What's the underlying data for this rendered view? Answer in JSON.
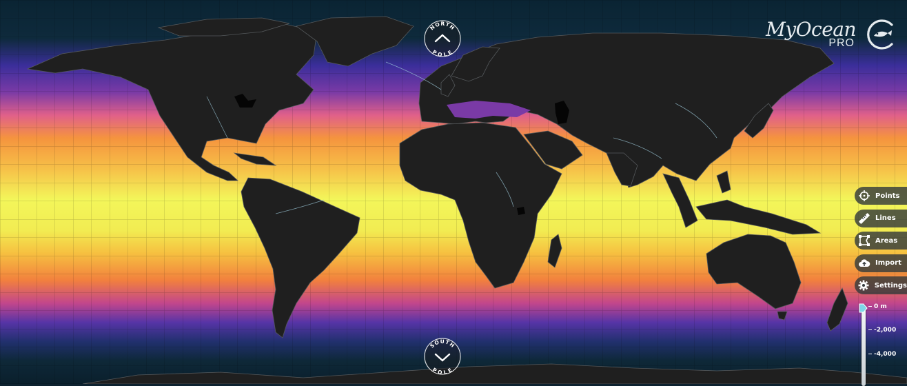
{
  "map": {
    "view": "world sea surface temperature",
    "colors": {
      "land": "#1f1f1f",
      "ocean_cold": "#0a2433",
      "ocean_cool": "#4a2ea5",
      "ocean_mid": "#d4508a",
      "ocean_warm": "#f5a23a",
      "ocean_hot": "#f3f75a",
      "borders": "#6b7075",
      "rivers": "#9cc8d8"
    }
  },
  "north_pole": {
    "line1": "NORTH",
    "line2": "POLE",
    "icon": "chevron-up-icon"
  },
  "south_pole": {
    "line1": "SOUTH",
    "line2": "POLE",
    "icon": "chevron-down-icon"
  },
  "logo": {
    "wordmark": "MyOcean",
    "tier": "PRO",
    "icon": "fish-in-circle-icon"
  },
  "tools": [
    {
      "label": "Points",
      "icon": "crosshair-icon"
    },
    {
      "label": "Lines",
      "icon": "ruler-icon"
    },
    {
      "label": "Areas",
      "icon": "polygon-area-icon"
    },
    {
      "label": "Import",
      "icon": "cloud-upload-icon"
    },
    {
      "label": "Settings",
      "icon": "gear-icon"
    }
  ],
  "depth": {
    "current": "0 m",
    "ticks": [
      "0 m",
      "-2,000",
      "-4,000"
    ]
  }
}
